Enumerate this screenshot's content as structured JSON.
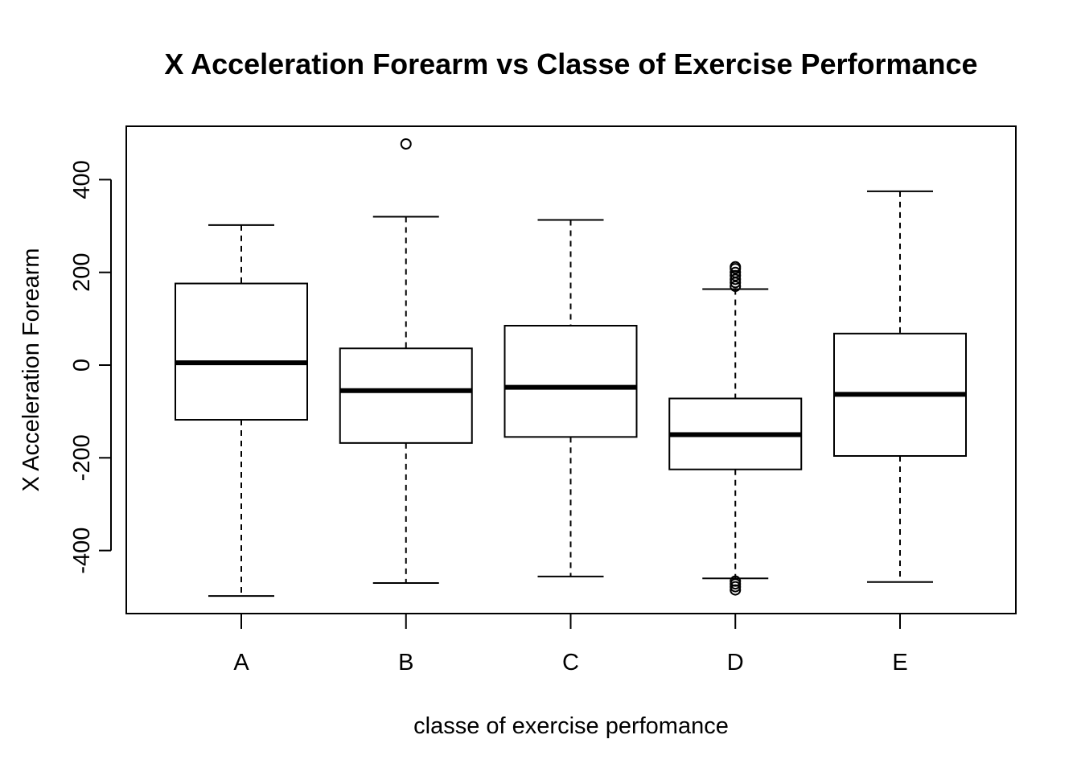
{
  "chart_data": {
    "type": "boxplot",
    "title": "X Acceleration Forearm vs Classe of Exercise Performance",
    "xlabel": "classe of exercise perfomance",
    "ylabel": "X Acceleration Forearm",
    "ylim": [
      -520,
      520
    ],
    "y_ticks": [
      -400,
      -200,
      0,
      200,
      400
    ],
    "y_tick_labels": [
      "-400",
      "-200",
      "0",
      "200",
      "400"
    ],
    "categories": [
      "A",
      "B",
      "C",
      "D",
      "E"
    ],
    "boxes": [
      {
        "category": "A",
        "lower_whisker": -498,
        "q1": -118,
        "median": 5,
        "q3": 176,
        "upper_whisker": 302,
        "outliers": []
      },
      {
        "category": "B",
        "lower_whisker": -470,
        "q1": -168,
        "median": -55,
        "q3": 36,
        "upper_whisker": 320,
        "outliers": [
          477
        ]
      },
      {
        "category": "C",
        "lower_whisker": -456,
        "q1": -155,
        "median": -48,
        "q3": 85,
        "upper_whisker": 313,
        "outliers": []
      },
      {
        "category": "D",
        "lower_whisker": -460,
        "q1": -225,
        "median": -150,
        "q3": -72,
        "upper_whisker": 164,
        "outliers": [
          170,
          178,
          185,
          193,
          200,
          208,
          212,
          -466,
          -472,
          -478,
          -485
        ]
      },
      {
        "category": "E",
        "lower_whisker": -468,
        "q1": -196,
        "median": -63,
        "q3": 68,
        "upper_whisker": 375,
        "outliers": []
      }
    ],
    "grid": false,
    "legend": "none"
  }
}
